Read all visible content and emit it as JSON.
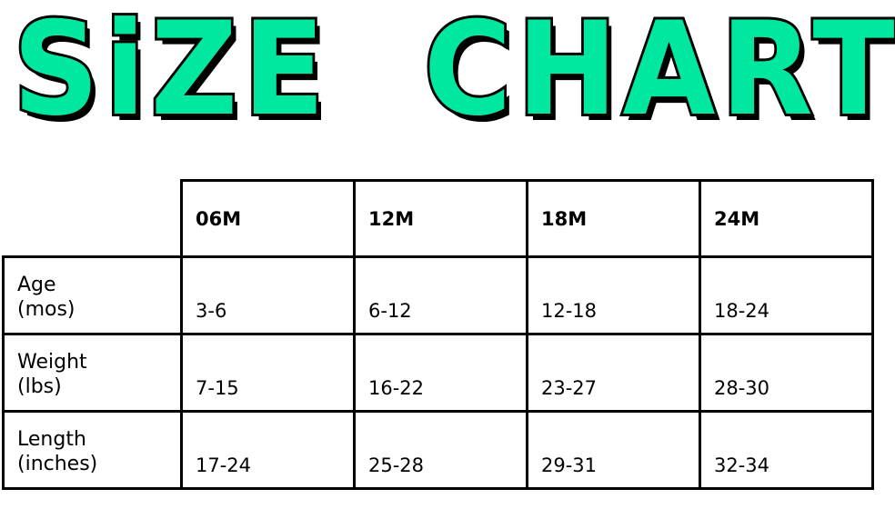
{
  "title": "SiZE  CHART",
  "accent_color": "#00E8A0",
  "table": {
    "columns": [
      "06M",
      "12M",
      "18M",
      "24M"
    ],
    "rows": [
      {
        "label_line1": "Age",
        "label_line2": "(mos)",
        "values": [
          "3-6",
          "6-12",
          "12-18",
          "18-24"
        ]
      },
      {
        "label_line1": "Weight",
        "label_line2": "(lbs)",
        "values": [
          "7-15",
          "16-22",
          "23-27",
          "28-30"
        ]
      },
      {
        "label_line1": "Length",
        "label_line2": "(inches)",
        "values": [
          "17-24",
          "25-28",
          "29-31",
          "32-34"
        ]
      }
    ]
  }
}
